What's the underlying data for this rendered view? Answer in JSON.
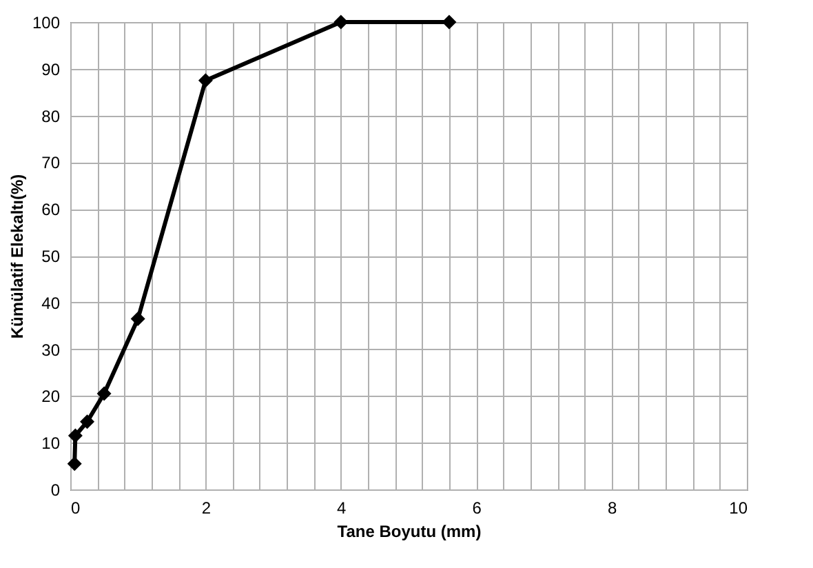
{
  "chart_data": {
    "type": "line",
    "xlabel": "Tane Boyutu  (mm)",
    "ylabel": "Kümülatif Elekaltı(%)",
    "x": [
      0.063,
      0.075,
      0.25,
      0.5,
      1.0,
      2.0,
      4.0,
      5.6
    ],
    "series": [
      {
        "color": "#000000",
        "values": [
          5.5,
          11.5,
          14.5,
          20.5,
          36.5,
          87.5,
          100,
          100
        ]
      }
    ],
    "xlim": [
      0,
      10
    ],
    "xticks": [
      0,
      {
        "value": 0.4,
        "label": null
      },
      {
        "value": 0.8,
        "label": null
      },
      {
        "value": 1.2,
        "label": null
      },
      {
        "value": 1.6,
        "label": null
      },
      2,
      {
        "value": 2.4,
        "label": null
      },
      {
        "value": 2.8,
        "label": null
      },
      {
        "value": 3.2,
        "label": null
      },
      {
        "value": 3.6,
        "label": null
      },
      4,
      {
        "value": 4.4,
        "label": null
      },
      {
        "value": 4.8,
        "label": null
      },
      {
        "value": 5.2,
        "label": null
      },
      {
        "value": 5.6,
        "label": null
      },
      6,
      {
        "value": 6.4,
        "label": null
      },
      {
        "value": 6.8,
        "label": null
      },
      {
        "value": 7.2,
        "label": null
      },
      {
        "value": 7.6,
        "label": null
      },
      8,
      {
        "value": 8.4,
        "label": null
      },
      {
        "value": 8.8,
        "label": null
      },
      {
        "value": 9.2,
        "label": null
      },
      {
        "value": 9.6,
        "label": null
      },
      10
    ],
    "ylim": [
      0,
      100
    ],
    "yticks": [
      0,
      10,
      20,
      30,
      40,
      50,
      60,
      70,
      80,
      90,
      100
    ],
    "grid": true,
    "marker": "diamond",
    "line_style": "solid"
  }
}
